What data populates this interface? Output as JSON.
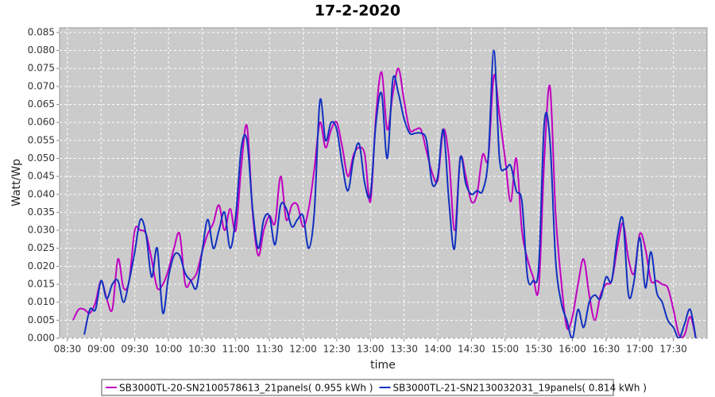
{
  "chart_data": {
    "type": "line",
    "title": "17-2-2020",
    "x_label": "time",
    "y_label": "Watt/Wp",
    "x": [
      510,
      515,
      520,
      525,
      530,
      535,
      540,
      545,
      550,
      555,
      560,
      565,
      570,
      575,
      580,
      585,
      590,
      595,
      600,
      605,
      610,
      615,
      620,
      625,
      630,
      635,
      640,
      645,
      650,
      655,
      660,
      665,
      670,
      675,
      680,
      685,
      690,
      695,
      700,
      705,
      710,
      715,
      720,
      725,
      730,
      735,
      740,
      745,
      750,
      755,
      760,
      765,
      770,
      775,
      780,
      785,
      790,
      795,
      800,
      805,
      810,
      815,
      820,
      825,
      830,
      835,
      840,
      845,
      850,
      855,
      860,
      865,
      870,
      875,
      880,
      885,
      890,
      895,
      900,
      905,
      910,
      915,
      920,
      925,
      930,
      935,
      940,
      945,
      950,
      955,
      960,
      965,
      970,
      975,
      980,
      985,
      990,
      995,
      1000,
      1005,
      1010,
      1015,
      1020,
      1025,
      1030,
      1035,
      1040,
      1045,
      1050,
      1055,
      1060,
      1065,
      1070
    ],
    "xlim": [
      503,
      1080
    ],
    "xticks": [
      {
        "value": 510,
        "label": "08:30"
      },
      {
        "value": 540,
        "label": "09:00"
      },
      {
        "value": 570,
        "label": "09:30"
      },
      {
        "value": 600,
        "label": "10:00"
      },
      {
        "value": 630,
        "label": "10:30"
      },
      {
        "value": 660,
        "label": "11:00"
      },
      {
        "value": 690,
        "label": "11:30"
      },
      {
        "value": 720,
        "label": "12:00"
      },
      {
        "value": 750,
        "label": "12:30"
      },
      {
        "value": 780,
        "label": "13:00"
      },
      {
        "value": 810,
        "label": "13:30"
      },
      {
        "value": 840,
        "label": "14:00"
      },
      {
        "value": 870,
        "label": "14:30"
      },
      {
        "value": 900,
        "label": "15:00"
      },
      {
        "value": 930,
        "label": "15:30"
      },
      {
        "value": 960,
        "label": "16:00"
      },
      {
        "value": 990,
        "label": "16:30"
      },
      {
        "value": 1020,
        "label": "17:00"
      },
      {
        "value": 1050,
        "label": "17:30"
      }
    ],
    "ylim": [
      0,
      0.0863
    ],
    "yticks": [
      {
        "value": 0,
        "label": "0.000"
      },
      0.005,
      {
        "value": 0.01,
        "label": "0.010"
      },
      0.015,
      {
        "value": 0.02,
        "label": "0.020"
      },
      0.025,
      {
        "value": 0.03,
        "label": "0.030"
      },
      0.035,
      {
        "value": 0.04,
        "label": "0.040"
      },
      0.045,
      {
        "value": 0.05,
        "label": "0.050"
      },
      0.055,
      {
        "value": 0.06,
        "label": "0.060"
      },
      0.065,
      {
        "value": 0.07,
        "label": "0.070"
      },
      0.075,
      {
        "value": 0.08,
        "label": "0.080"
      },
      0.085
    ],
    "grid": true,
    "series": [
      {
        "name": "SB3000TL-20-SN2100578613_21panels( 0.955 kWh )",
        "color": "#c000c0",
        "values": [
          null,
          0.005,
          0.008,
          0.008,
          0.007,
          0.01,
          0.016,
          0.011,
          0.008,
          0.022,
          0.014,
          0.016,
          0.03,
          0.03,
          0.029,
          0.022,
          0.014,
          0.015,
          0.019,
          0.025,
          0.029,
          0.015,
          0.016,
          0.018,
          0.024,
          0.029,
          0.032,
          0.037,
          0.03,
          0.036,
          0.03,
          0.048,
          0.059,
          0.035,
          0.023,
          0.03,
          0.034,
          0.032,
          0.045,
          0.033,
          0.037,
          0.037,
          0.031,
          0.036,
          0.047,
          0.06,
          0.053,
          0.058,
          0.06,
          0.053,
          0.045,
          0.051,
          0.053,
          0.051,
          0.038,
          0.062,
          0.074,
          0.058,
          0.068,
          0.075,
          0.066,
          0.058,
          0.058,
          0.058,
          0.052,
          0.046,
          0.044,
          0.058,
          0.05,
          0.03,
          0.05,
          0.045,
          0.038,
          0.04,
          0.051,
          0.05,
          0.073,
          0.062,
          0.05,
          0.038,
          0.05,
          0.03,
          0.022,
          0.017,
          0.014,
          0.05,
          0.07,
          0.035,
          0.016,
          0.003,
          0.006,
          0.015,
          0.022,
          0.012,
          0.005,
          0.012,
          0.015,
          0.016,
          0.025,
          0.032,
          0.022,
          0.018,
          0.029,
          0.025,
          0.016,
          0.016,
          0.015,
          0.014,
          0.008,
          0.001,
          0.001,
          0.006,
          0
        ]
      },
      {
        "name": "SB3000TL-21-SN2130032031_19panels( 0.814 kWh )",
        "color": "#1030c0",
        "values": [
          null,
          null,
          null,
          0.001,
          0.008,
          0.008,
          0.016,
          0.011,
          0.015,
          0.016,
          0.01,
          0.016,
          0.024,
          0.033,
          0.029,
          0.017,
          0.025,
          0.007,
          0.017,
          0.023,
          0.023,
          0.018,
          0.016,
          0.014,
          0.024,
          0.033,
          0.025,
          0.03,
          0.035,
          0.025,
          0.034,
          0.053,
          0.055,
          0.036,
          0.025,
          0.033,
          0.034,
          0.026,
          0.037,
          0.036,
          0.031,
          0.033,
          0.034,
          0.025,
          0.035,
          0.066,
          0.055,
          0.06,
          0.058,
          0.048,
          0.041,
          0.05,
          0.054,
          0.043,
          0.04,
          0.06,
          0.068,
          0.05,
          0.072,
          0.068,
          0.061,
          0.057,
          0.057,
          0.057,
          0.055,
          0.043,
          0.045,
          0.058,
          0.038,
          0.025,
          0.05,
          0.043,
          0.04,
          0.041,
          0.041,
          0.05,
          0.08,
          0.05,
          0.047,
          0.048,
          0.041,
          0.038,
          0.017,
          0.016,
          0.02,
          0.06,
          0.055,
          0.022,
          0.01,
          0.005,
          0,
          0.008,
          0.003,
          0.01,
          0.012,
          0.011,
          0.017,
          0.016,
          0.028,
          0.033,
          0.012,
          0.016,
          0.028,
          0.014,
          0.024,
          0.013,
          0.01,
          0.005,
          0.003,
          0,
          0.004,
          0.008,
          0
        ]
      }
    ]
  }
}
